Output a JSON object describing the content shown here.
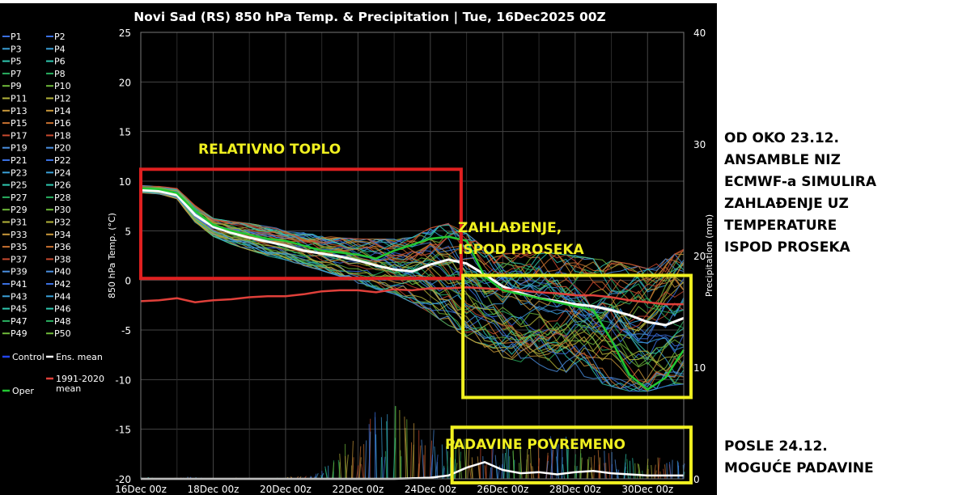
{
  "notes": {
    "right_top": "OD OKO 23.12.\nANSAMBLE  NIZ\nECMWF-a SIMULIRA\nZAHLAĐENJE UZ\nTEMPERATURE\nISPOD PROSEKA",
    "right_bottom": "POSLE 24.12.\nMOGUĆE PADAVINE"
  },
  "colors": {
    "background": "#000000",
    "ens_mean": "#ffffff",
    "climatology": "#e0403a",
    "oper": "#22c832",
    "control": "#2244ee",
    "box_red": "#e02020",
    "box_yellow": "#f0f020",
    "annotation_text": "#f0f020"
  },
  "chart_data": {
    "type": "line",
    "title": "Novi Sad  (RS)  850 hPa Temp. & Precipitation | Tue, 16Dec2025 00Z",
    "ylabel": "850 hPa Temp. (°C)",
    "y2label": "Precipitation (mm)",
    "x_ticks": [
      "16Dec 00z",
      "18Dec 00z",
      "20Dec 00z",
      "22Dec 00z",
      "24Dec 00z",
      "26Dec 00z",
      "28Dec 00z",
      "30Dec 00z"
    ],
    "x_range_days": [
      0,
      15
    ],
    "y_ticks": [
      25,
      20,
      15,
      10,
      5,
      0,
      -5,
      -10,
      -15,
      -20
    ],
    "ylim": [
      -20,
      25
    ],
    "y2_ticks": [
      40,
      30,
      20,
      10,
      0
    ],
    "y2lim": [
      0,
      40
    ],
    "legend_placement": "left",
    "legend": {
      "members": [
        "P1",
        "P2",
        "P3",
        "P4",
        "P5",
        "P6",
        "P7",
        "P8",
        "P9",
        "P10",
        "P11",
        "P12",
        "P13",
        "P14",
        "P15",
        "P16",
        "P17",
        "P18",
        "P19",
        "P20",
        "P21",
        "P22",
        "P23",
        "P24",
        "P25",
        "P26",
        "P27",
        "P28",
        "P29",
        "P30",
        "P31",
        "P32",
        "P33",
        "P34",
        "P35",
        "P36",
        "P37",
        "P38",
        "P39",
        "P40",
        "P41",
        "P42",
        "P43",
        "P44",
        "P45",
        "P46",
        "P47",
        "P48",
        "P49",
        "P50"
      ],
      "extra": [
        "Control",
        "Ens. mean",
        "1991-2020 mean",
        "Oper"
      ]
    },
    "series": [
      {
        "name": "Ens. mean",
        "color": "#ffffff",
        "x": [
          0,
          0.5,
          1,
          1.5,
          2,
          2.5,
          3,
          3.5,
          4,
          4.5,
          5,
          5.5,
          6,
          6.5,
          7,
          7.5,
          8,
          8.5,
          9,
          9.5,
          10,
          10.5,
          11,
          11.5,
          12,
          12.5,
          13,
          13.5,
          14,
          14.5,
          15
        ],
        "y": [
          9.1,
          9.0,
          8.6,
          6.6,
          5.4,
          4.8,
          4.3,
          3.9,
          3.5,
          3.0,
          2.7,
          2.4,
          2.0,
          1.5,
          1.1,
          0.9,
          1.6,
          2.1,
          1.7,
          0.6,
          -0.6,
          -1.3,
          -1.8,
          -2.1,
          -2.4,
          -2.6,
          -3.0,
          -3.5,
          -4.2,
          -4.5,
          -3.8
        ]
      },
      {
        "name": "1991-2020 mean",
        "color": "#e0403a",
        "x": [
          0,
          0.5,
          1,
          1.5,
          2,
          2.5,
          3,
          3.5,
          4,
          4.5,
          5,
          5.5,
          6,
          6.5,
          7,
          7.5,
          8,
          8.5,
          9,
          9.5,
          10,
          10.5,
          11,
          11.5,
          12,
          12.5,
          13,
          13.5,
          14,
          14.5,
          15
        ],
        "y": [
          -2.1,
          -2.0,
          -1.8,
          -2.2,
          -2.0,
          -1.9,
          -1.7,
          -1.6,
          -1.6,
          -1.4,
          -1.1,
          -1.0,
          -1.0,
          -1.2,
          -0.9,
          -1.0,
          -0.8,
          -0.8,
          -0.7,
          -0.8,
          -0.9,
          -1.0,
          -1.2,
          -1.3,
          -1.5,
          -1.5,
          -1.7,
          -2.0,
          -2.2,
          -2.4,
          -2.4
        ]
      },
      {
        "name": "Oper",
        "color": "#22c832",
        "x": [
          0,
          0.5,
          1,
          1.5,
          2,
          2.5,
          3,
          3.5,
          4,
          4.5,
          5,
          5.5,
          6,
          6.5,
          7,
          7.5,
          8,
          8.5,
          9,
          9.5,
          10,
          10.5,
          11,
          11.5,
          12,
          12.5,
          13,
          13.5,
          14,
          14.5,
          15
        ],
        "y": [
          9.3,
          9.2,
          8.8,
          7.0,
          5.6,
          5.0,
          4.6,
          4.2,
          4.0,
          3.5,
          3.0,
          2.8,
          2.6,
          2.2,
          3.0,
          3.6,
          4.2,
          4.4,
          4.0,
          0.4,
          -1.0,
          -1.4,
          -1.8,
          -2.2,
          -2.6,
          -3.0,
          -6.0,
          -9.5,
          -11.0,
          -9.8,
          -7.0
        ]
      }
    ],
    "ensemble_spread": {
      "min": [
        8.8,
        8.7,
        8.2,
        5.8,
        4.4,
        3.6,
        3.0,
        2.4,
        2.0,
        1.4,
        0.9,
        0.3,
        -0.4,
        -1.0,
        -1.5,
        -2.4,
        -3.5,
        -4.8,
        -6.0,
        -7.0,
        -8.0,
        -8.5,
        -9.0,
        -9.5,
        -10.0,
        -10.5,
        -11.0,
        -11.5,
        -11.5,
        -11.0,
        -10.8
      ],
      "max": [
        9.6,
        9.5,
        9.3,
        7.6,
        6.3,
        6.0,
        5.8,
        5.5,
        5.2,
        4.9,
        4.6,
        4.4,
        4.3,
        4.3,
        4.3,
        4.5,
        5.5,
        6.0,
        5.0,
        3.5,
        3.0,
        3.0,
        3.2,
        3.0,
        2.8,
        2.5,
        2.3,
        2.0,
        1.5,
        2.5,
        3.5
      ]
    },
    "precipitation": {
      "unit": "mm",
      "x": [
        0,
        1,
        2,
        3,
        4,
        5,
        6,
        7,
        8,
        8.5,
        9,
        9.5,
        10,
        10.5,
        11,
        11.5,
        12,
        12.5,
        13,
        13.5,
        14,
        14.5,
        15
      ],
      "mean": [
        0,
        0,
        0,
        0,
        0,
        0,
        0,
        0,
        0.1,
        0.3,
        1.0,
        1.5,
        0.8,
        0.5,
        0.6,
        0.4,
        0.6,
        0.7,
        0.5,
        0.4,
        0.3,
        0.3,
        0.3
      ],
      "max": [
        0.2,
        0,
        0.2,
        0,
        0.1,
        0,
        0.2,
        0.3,
        2.5,
        5.0,
        7.0,
        5.5,
        4.0,
        3.5,
        4.0,
        3.0,
        3.5,
        4.5,
        3.0,
        2.5,
        2.0,
        2.0,
        1.5
      ]
    },
    "annotations": [
      {
        "text": "RELATIVNO TOPLO",
        "x_days": [
          0,
          8.85
        ],
        "y": [
          0.2,
          11.2
        ],
        "box_color": "#e02020"
      },
      {
        "text": "ZAHLAĐENJE,\nISPOD PROSEKA",
        "x_days": [
          8.9,
          15.2
        ],
        "y": [
          -11.8,
          0.5
        ],
        "box_color": "#f0f020"
      },
      {
        "text": "PADAVINE POVREMENO",
        "x_days": [
          8.6,
          15.2
        ],
        "y": [
          -20.4,
          -14.8
        ],
        "box_color": "#f0f020"
      }
    ]
  }
}
